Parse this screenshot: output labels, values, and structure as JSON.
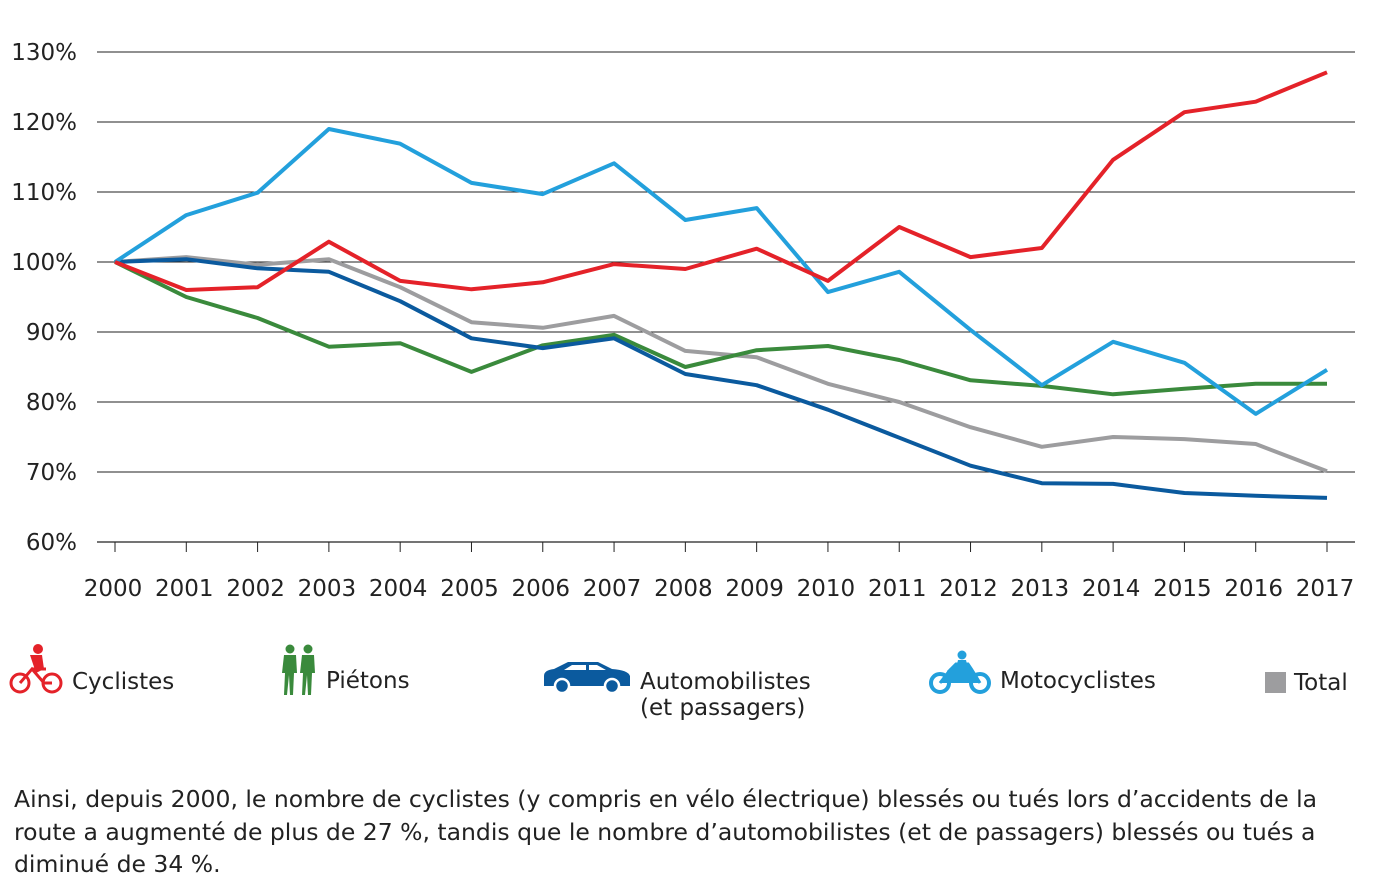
{
  "chart_data": {
    "type": "line",
    "x": [
      2000,
      2001,
      2002,
      2003,
      2004,
      2005,
      2006,
      2007,
      2008,
      2009,
      2010,
      2011,
      2012,
      2013,
      2014,
      2015,
      2016,
      2017
    ],
    "ylim": [
      60,
      130
    ],
    "yticks": [
      60,
      70,
      80,
      90,
      100,
      110,
      120,
      130
    ],
    "ytick_labels": [
      "60%",
      "70%",
      "80%",
      "90%",
      "100%",
      "110%",
      "120%",
      "130%"
    ],
    "grid": true,
    "legend_placement": "bottom",
    "series": [
      {
        "name": "Total",
        "color": "#9d9d9f",
        "values": [
          100,
          100.7,
          99.6,
          100.4,
          96.4,
          91.4,
          90.6,
          92.3,
          87.3,
          86.4,
          82.6,
          80,
          76.4,
          73.6,
          75,
          74.7,
          74,
          70.1
        ]
      },
      {
        "name": "Piétons",
        "color": "#3a8a3c",
        "values": [
          100,
          95,
          92,
          87.9,
          88.4,
          84.3,
          88.1,
          89.6,
          85,
          87.4,
          88,
          86,
          83.1,
          82.3,
          81.1,
          81.9,
          82.6,
          82.6
        ]
      },
      {
        "name": "Automobilistes (et passagers)",
        "color": "#0b5a9e",
        "values": [
          100,
          100.4,
          99.1,
          98.6,
          94.4,
          89.1,
          87.7,
          89.1,
          84,
          82.4,
          78.9,
          74.9,
          70.9,
          68.4,
          68.3,
          67,
          66.6,
          66.3
        ]
      },
      {
        "name": "Motocyclistes",
        "color": "#23a0dc",
        "values": [
          100,
          106.7,
          109.9,
          119,
          116.9,
          111.3,
          109.7,
          114.1,
          106,
          107.7,
          95.7,
          98.6,
          90.3,
          82.4,
          88.6,
          85.6,
          78.3,
          84.6
        ]
      },
      {
        "name": "Cyclistes",
        "color": "#e42229",
        "values": [
          100,
          96,
          96.4,
          102.9,
          97.3,
          96.1,
          97.1,
          99.7,
          99,
          101.9,
          97.3,
          105,
          100.7,
          102,
          114.6,
          121.4,
          122.9,
          127.1
        ]
      }
    ]
  },
  "legend": {
    "cyclistes": {
      "label": "Cyclistes",
      "icon": "bicycle-rider-icon"
    },
    "pietons": {
      "label": "Piétons",
      "icon": "pedestrians-icon"
    },
    "automobilistes": {
      "label": "Automobilistes",
      "label2": "(et passagers)",
      "icon": "car-icon"
    },
    "motocyclistes": {
      "label": "Motocyclistes",
      "icon": "motorcycle-icon"
    },
    "total": {
      "label": "Total",
      "icon": "gray-square-icon"
    }
  },
  "caption": "Ainsi, depuis 2000, le nombre de cyclistes (y compris en vélo électrique) blessés ou tués lors d’accidents de la route a augmenté de plus de 27 %, tandis que le nombre d’automobilistes (et de passagers) blessés ou tués a diminué de 34 %."
}
